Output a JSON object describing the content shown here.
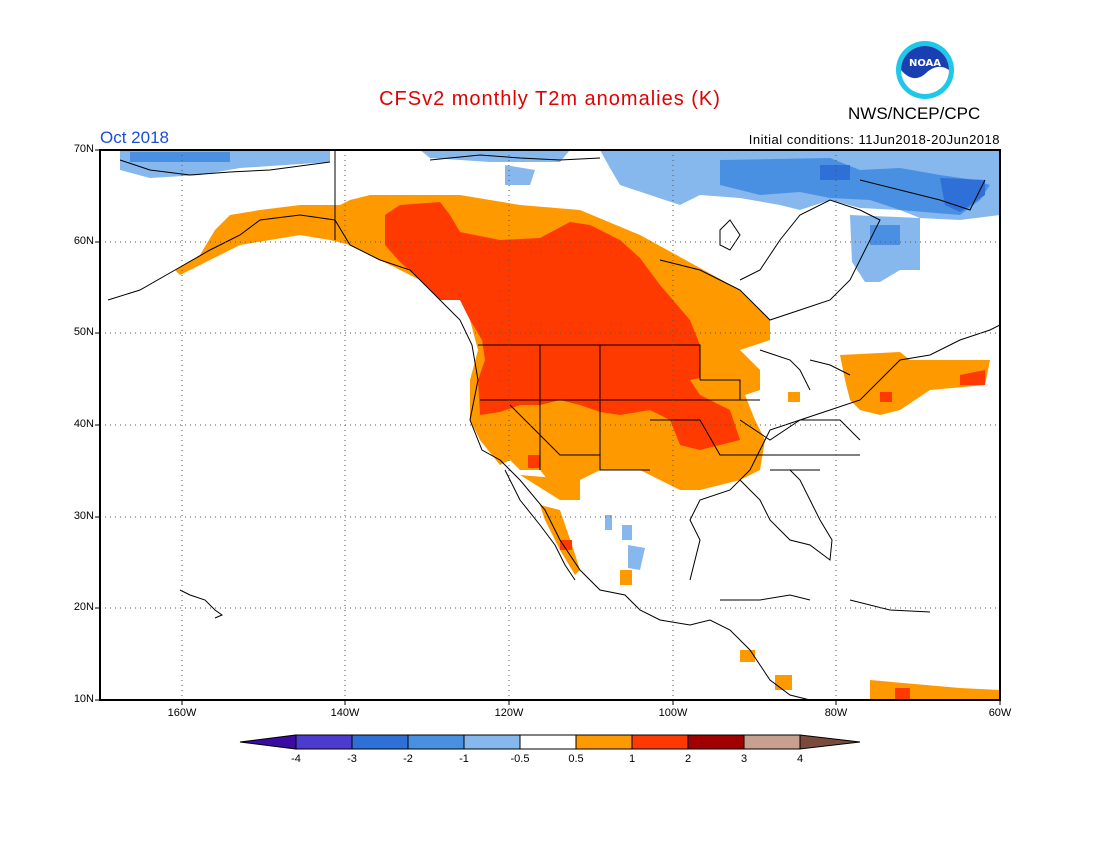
{
  "title": "CFSv2 monthly T2m anomalies (K)",
  "valid_period": "Oct 2018",
  "initial_conditions": "Initial conditions: 11Jun2018-20Jun2018",
  "agency": "NWS/NCEP/CPC",
  "logo_text": "NOAA",
  "map": {
    "lat_labels": [
      "70N",
      "60N",
      "50N",
      "40N",
      "30N",
      "20N",
      "10N"
    ],
    "lon_labels": [
      "160W",
      "140W",
      "120W",
      "100W",
      "80W",
      "60W"
    ]
  },
  "colorbar": {
    "labels": [
      "-4",
      "-3",
      "-2",
      "-1",
      "-0.5",
      "0.5",
      "1",
      "2",
      "3",
      "4"
    ],
    "colors": [
      "#3a0ca3",
      "#4b3ccf",
      "#2e6fd8",
      "#4a90e2",
      "#86b8ee",
      "#ffffff",
      "#ff9900",
      "#ff3a00",
      "#a00000",
      "#c8a090",
      "#7a4a3a"
    ]
  },
  "anomaly_colors": {
    "warm_1": "#ff9900",
    "warm_2": "#ff3a00",
    "warm_3": "#cc1100",
    "cold_1": "#86b8ee",
    "cold_2": "#4a90e2",
    "cold_3": "#2e6fd8"
  }
}
